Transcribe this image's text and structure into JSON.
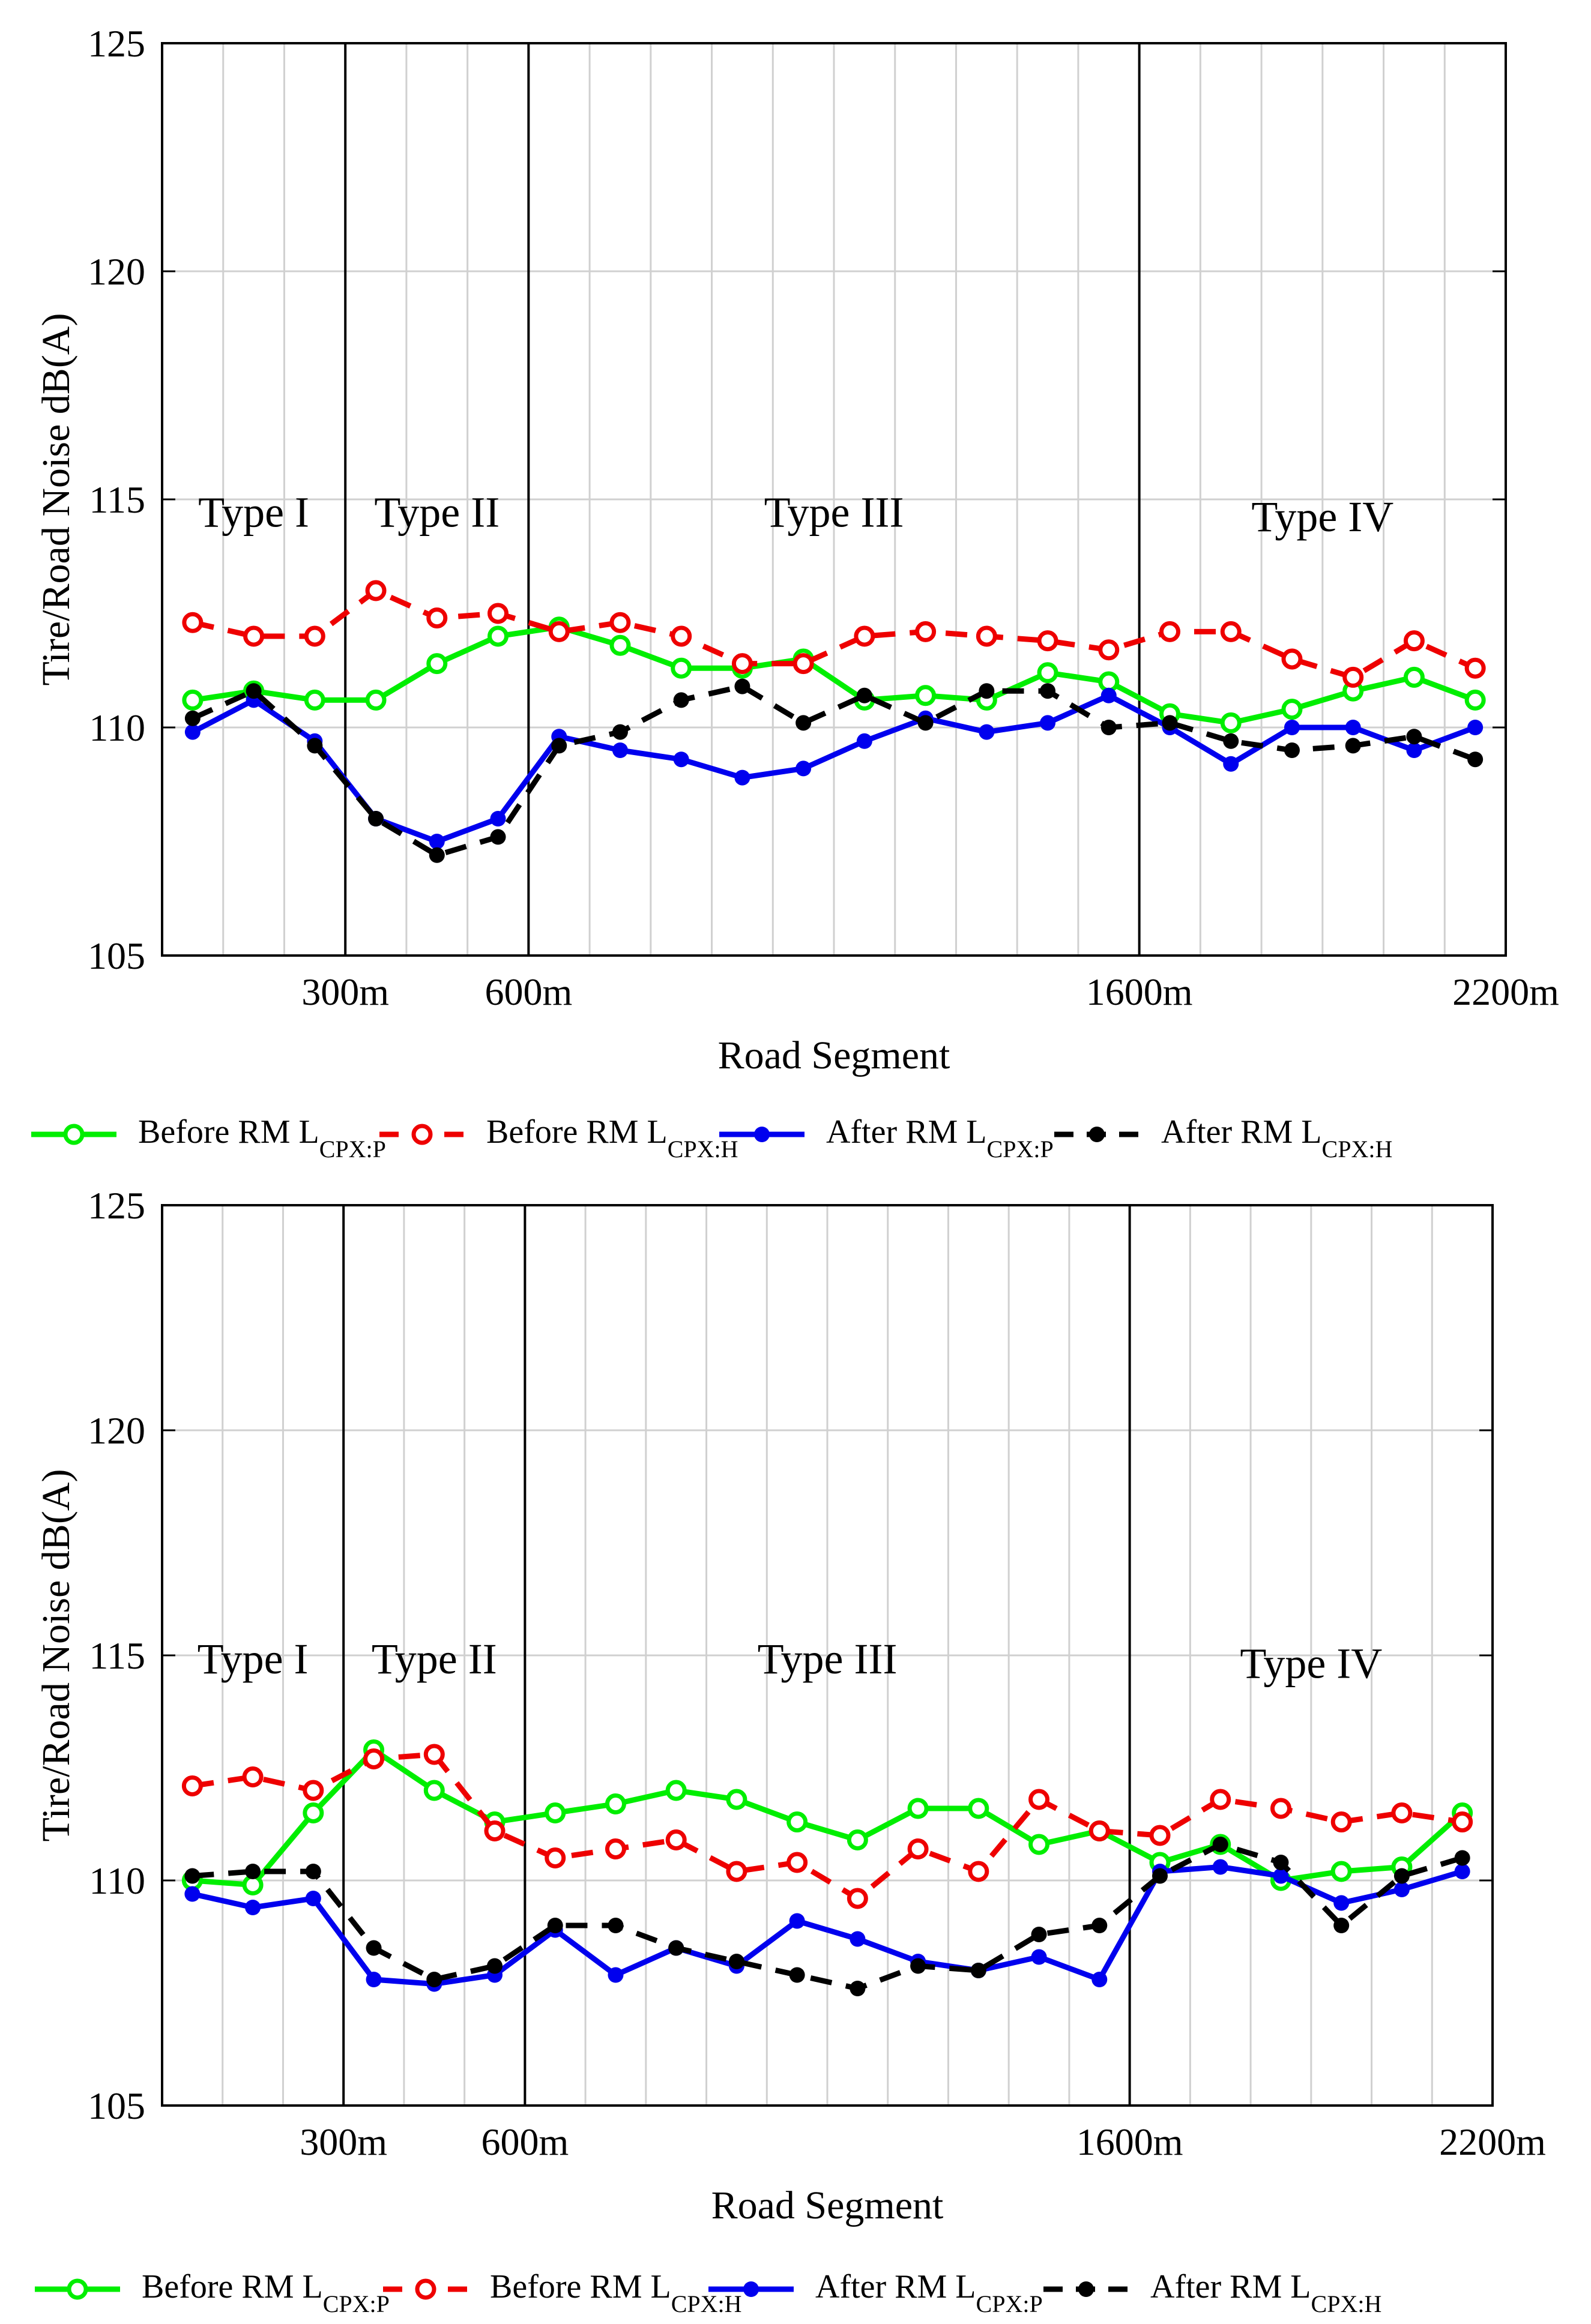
{
  "figure": {
    "colors": {
      "before_p": "#00ee00",
      "before_h": "#ee0000",
      "after_p": "#0000ee",
      "after_h": "#000000"
    }
  },
  "chart_data": [
    {
      "type": "line",
      "xlabel": "Road Segment",
      "ylabel": "Tire/Road Noise dB(A)",
      "ylim": [
        105,
        125
      ],
      "yticks": [
        105,
        110,
        115,
        120,
        125
      ],
      "xlim": [
        0,
        2200
      ],
      "xtick_labels": [
        {
          "value": 300,
          "label": "300m"
        },
        {
          "value": 600,
          "label": "600m"
        },
        {
          "value": 1600,
          "label": "1600m"
        },
        {
          "value": 2200,
          "label": "2200m"
        }
      ],
      "minor_gridlines": [
        100,
        200,
        400,
        500,
        700,
        800,
        900,
        1000,
        1100,
        1200,
        1300,
        1400,
        1500,
        1700,
        1800,
        1900,
        2000,
        2100
      ],
      "section_boundaries": [
        300,
        600,
        1600
      ],
      "regions": [
        {
          "label": "Type I",
          "x": 150,
          "y": 114.4
        },
        {
          "label": "Type II",
          "x": 450,
          "y": 114.4
        },
        {
          "label": "Type III",
          "x": 1100,
          "y": 114.4
        },
        {
          "label": "Type IV",
          "x": 1900,
          "y": 114.3
        }
      ],
      "grid": true,
      "x": [
        50,
        150,
        250,
        350,
        450,
        550,
        650,
        750,
        850,
        950,
        1050,
        1150,
        1250,
        1350,
        1450,
        1550,
        1650,
        1750,
        1850,
        1950,
        2050,
        2150
      ],
      "series": [
        {
          "key": "before_p",
          "name": "Before RM L",
          "sub": "CPX:P",
          "style": "solid",
          "marker": "open",
          "values": [
            110.6,
            110.8,
            110.6,
            110.6,
            111.4,
            112.0,
            112.2,
            111.8,
            111.3,
            111.3,
            111.5,
            110.6,
            110.7,
            110.6,
            111.2,
            111.0,
            110.3,
            110.1,
            110.4,
            110.8,
            111.1,
            110.6
          ]
        },
        {
          "key": "before_h",
          "name": "Before RM L",
          "sub": "CPX:H",
          "style": "dashed",
          "marker": "open",
          "values": [
            112.3,
            112.0,
            112.0,
            113.0,
            112.4,
            112.5,
            112.1,
            112.3,
            112.0,
            111.4,
            111.4,
            112.0,
            112.1,
            112.0,
            111.9,
            111.7,
            112.1,
            112.1,
            111.5,
            111.1,
            111.9,
            111.3
          ]
        },
        {
          "key": "after_p",
          "name": "After RM L",
          "sub": "CPX:P",
          "style": "solid",
          "marker": "filled",
          "values": [
            109.9,
            110.6,
            109.7,
            108.0,
            107.5,
            108.0,
            109.8,
            109.5,
            109.3,
            108.9,
            109.1,
            109.7,
            110.2,
            109.9,
            110.1,
            110.7,
            110.0,
            109.2,
            110.0,
            110.0,
            109.5,
            110.0
          ]
        },
        {
          "key": "after_h",
          "name": "After RM L",
          "sub": "CPX:H",
          "style": "dashed",
          "marker": "filled",
          "values": [
            110.2,
            110.8,
            109.6,
            108.0,
            107.2,
            107.6,
            109.6,
            109.9,
            110.6,
            110.9,
            110.1,
            110.7,
            110.1,
            110.8,
            110.8,
            110.0,
            110.1,
            109.7,
            109.5,
            109.6,
            109.8,
            109.3
          ]
        }
      ]
    },
    {
      "type": "line",
      "xlabel": "Road Segment",
      "ylabel": "Tire/Road Noise dB(A)",
      "ylim": [
        105,
        125
      ],
      "yticks": [
        105,
        110,
        115,
        120,
        125
      ],
      "xlim": [
        0,
        2200
      ],
      "xtick_labels": [
        {
          "value": 300,
          "label": "300m"
        },
        {
          "value": 600,
          "label": "600m"
        },
        {
          "value": 1600,
          "label": "1600m"
        },
        {
          "value": 2200,
          "label": "2200m"
        }
      ],
      "minor_gridlines": [
        100,
        200,
        400,
        500,
        700,
        800,
        900,
        1000,
        1100,
        1200,
        1300,
        1400,
        1500,
        1700,
        1800,
        1900,
        2000,
        2100
      ],
      "section_boundaries": [
        300,
        600,
        1600
      ],
      "regions": [
        {
          "label": "Type I",
          "x": 150,
          "y": 114.6
        },
        {
          "label": "Type II",
          "x": 450,
          "y": 114.6
        },
        {
          "label": "Type III",
          "x": 1100,
          "y": 114.6
        },
        {
          "label": "Type IV",
          "x": 1900,
          "y": 114.5
        }
      ],
      "grid": true,
      "x": [
        50,
        150,
        250,
        350,
        450,
        550,
        650,
        750,
        850,
        950,
        1050,
        1150,
        1250,
        1350,
        1450,
        1550,
        1650,
        1750,
        1850,
        1950,
        2050,
        2150
      ],
      "series": [
        {
          "key": "before_p",
          "name": "Before RM L",
          "sub": "CPX:P",
          "style": "solid",
          "marker": "open",
          "values": [
            110.0,
            109.9,
            111.5,
            112.9,
            112.0,
            111.3,
            111.5,
            111.7,
            112.0,
            111.8,
            111.3,
            110.9,
            111.6,
            111.6,
            110.8,
            111.1,
            110.4,
            110.8,
            110.0,
            110.2,
            110.3,
            111.5
          ]
        },
        {
          "key": "before_h",
          "name": "Before RM L",
          "sub": "CPX:H",
          "style": "dashed",
          "marker": "open",
          "values": [
            112.1,
            112.3,
            112.0,
            112.7,
            112.8,
            111.1,
            110.5,
            110.7,
            110.9,
            110.2,
            110.4,
            109.6,
            110.7,
            110.2,
            111.8,
            111.1,
            111.0,
            111.8,
            111.6,
            111.3,
            111.5,
            111.3
          ]
        },
        {
          "key": "after_p",
          "name": "After RM L",
          "sub": "CPX:P",
          "style": "solid",
          "marker": "filled",
          "values": [
            109.7,
            109.4,
            109.6,
            107.8,
            107.7,
            107.9,
            108.9,
            107.9,
            108.5,
            108.1,
            109.1,
            108.7,
            108.2,
            108.0,
            108.3,
            107.8,
            110.2,
            110.3,
            110.1,
            109.5,
            109.8,
            110.2
          ]
        },
        {
          "key": "after_h",
          "name": "After RM L",
          "sub": "CPX:H",
          "style": "dashed",
          "marker": "filled",
          "values": [
            110.1,
            110.2,
            110.2,
            108.5,
            107.8,
            108.1,
            109.0,
            109.0,
            108.5,
            108.2,
            107.9,
            107.6,
            108.1,
            108.0,
            108.8,
            109.0,
            110.1,
            110.8,
            110.4,
            109.0,
            110.1,
            110.5
          ]
        }
      ]
    }
  ]
}
